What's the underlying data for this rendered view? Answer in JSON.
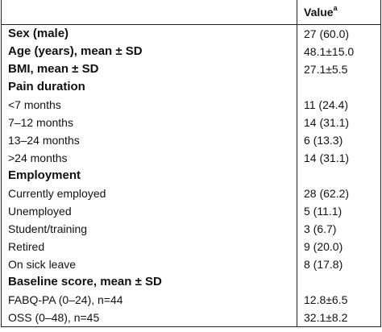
{
  "header": {
    "characteristic": "",
    "value": "Value",
    "value_sup": "a"
  },
  "rows": [
    {
      "label": "Sex (male)",
      "value": "27 (60.0)",
      "bold": true
    },
    {
      "label": "Age (years), mean ± SD",
      "value": "48.1±15.0",
      "bold": true
    },
    {
      "label": "BMI, mean ± SD",
      "value": "27.1±5.5",
      "bold": true
    },
    {
      "label": "Pain duration",
      "value": "",
      "bold": true
    },
    {
      "label": "<7 months",
      "value": "11 (24.4)",
      "bold": false
    },
    {
      "label": "7–12 months",
      "value": "14 (31.1)",
      "bold": false
    },
    {
      "label": "13–24 months",
      "value": "6 (13.3)",
      "bold": false
    },
    {
      "label": ">24 months",
      "value": "14 (31.1)",
      "bold": false
    },
    {
      "label": "Employment",
      "value": "",
      "bold": true
    },
    {
      "label": "Currently employed",
      "value": "28 (62.2)",
      "bold": false
    },
    {
      "label": "Unemployed",
      "value": "5 (11.1)",
      "bold": false
    },
    {
      "label": "Student/training",
      "value": "3 (6.7)",
      "bold": false
    },
    {
      "label": "Retired",
      "value": "9 (20.0)",
      "bold": false
    },
    {
      "label": "On sick leave",
      "value": "8 (17.8)",
      "bold": false
    },
    {
      "label": "Baseline score, mean ± SD",
      "value": "",
      "bold": true
    },
    {
      "label": "FABQ-PA (0–24), n=44",
      "value": "12.8±6.5",
      "bold": false
    },
    {
      "label": "OSS (0–48), n=45",
      "value": "32.1±8.2",
      "bold": false
    }
  ]
}
